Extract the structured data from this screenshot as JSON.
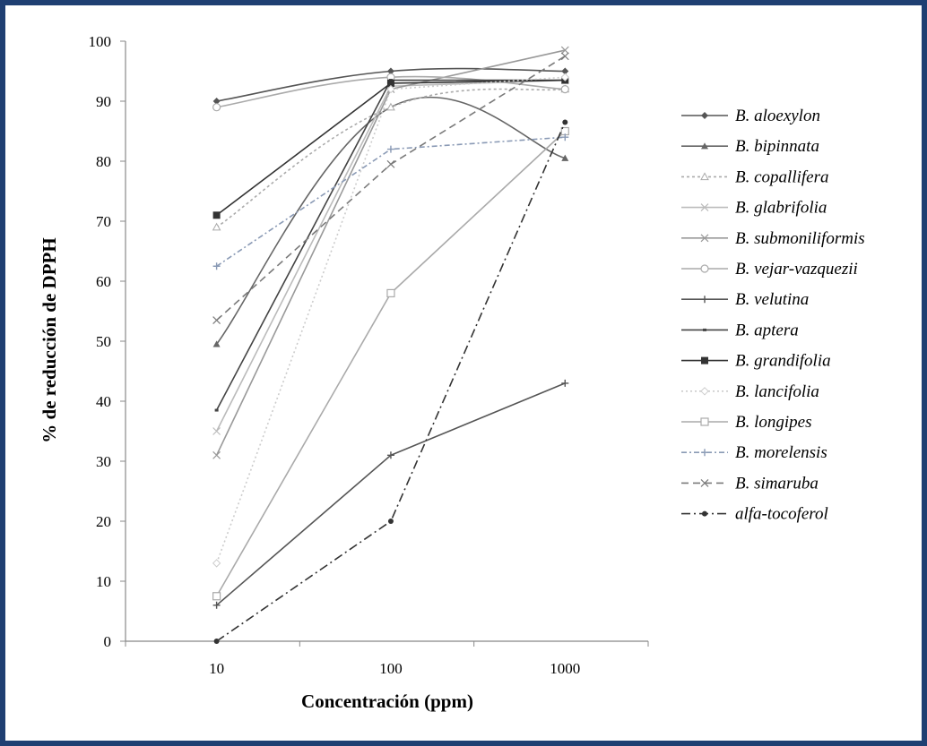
{
  "chart_data": {
    "type": "line",
    "title": "",
    "xlabel": "Concentración (ppm)",
    "ylabel": "% de reducción de DPPH",
    "x": [
      10,
      100,
      1000
    ],
    "x_tick_labels": [
      "10",
      "100",
      "1000"
    ],
    "x_scale": "log",
    "xlim": [
      3,
      3000
    ],
    "ylim": [
      0,
      100
    ],
    "y_ticks": [
      0,
      10,
      20,
      30,
      40,
      50,
      60,
      70,
      80,
      90,
      100
    ],
    "grid": false,
    "legend_position": "right",
    "series": [
      {
        "name": "B. aloexylon",
        "values": [
          90,
          95,
          95
        ],
        "color": "#555555",
        "dash": "",
        "marker": "diamond",
        "smooth": true
      },
      {
        "name": "B. bipinnata",
        "values": [
          49.5,
          89,
          80.5
        ],
        "color": "#666666",
        "dash": "",
        "marker": "triangle",
        "smooth": true
      },
      {
        "name": "B. copallifera",
        "values": [
          69,
          89,
          92
        ],
        "color": "#aaaaaa",
        "dash": "3,3",
        "marker": "triangle-open",
        "smooth": true
      },
      {
        "name": "B. glabrifolia",
        "values": [
          35,
          92.5,
          93.5
        ],
        "color": "#bbbbbb",
        "dash": "",
        "marker": "x",
        "smooth": false
      },
      {
        "name": "B. submoniliformis",
        "values": [
          31,
          92,
          98.5
        ],
        "color": "#999999",
        "dash": "",
        "marker": "x",
        "smooth": false
      },
      {
        "name": "B. vejar-vazquezii",
        "values": [
          89,
          94,
          92
        ],
        "color": "#aaaaaa",
        "dash": "",
        "marker": "circle-open",
        "smooth": true
      },
      {
        "name": "B. velutina",
        "values": [
          6,
          31,
          43
        ],
        "color": "#555555",
        "dash": "",
        "marker": "plus",
        "smooth": false
      },
      {
        "name": "B. aptera",
        "values": [
          38.5,
          93.5,
          93.5
        ],
        "color": "#444444",
        "dash": "",
        "marker": "dash",
        "smooth": false
      },
      {
        "name": "B. grandifolia",
        "values": [
          71,
          93,
          93.5
        ],
        "color": "#333333",
        "dash": "",
        "marker": "square",
        "smooth": false
      },
      {
        "name": "B. lancifolia",
        "values": [
          13,
          92,
          94
        ],
        "color": "#cccccc",
        "dash": "2,3",
        "marker": "diamond-open",
        "smooth": false
      },
      {
        "name": "B. longipes",
        "values": [
          7.5,
          58,
          85
        ],
        "color": "#aaaaaa",
        "dash": "",
        "marker": "square-open",
        "smooth": false
      },
      {
        "name": "B. morelensis",
        "values": [
          62.5,
          82,
          84
        ],
        "color": "#8a9ab5",
        "dash": "6,3,2,3",
        "marker": "plus",
        "smooth": false
      },
      {
        "name": "B. simaruba",
        "values": [
          53.5,
          79.5,
          97.5
        ],
        "color": "#7a7a7a",
        "dash": "8,5",
        "marker": "x",
        "smooth": false
      },
      {
        "name": "alfa-tocoferol",
        "values": [
          0,
          20,
          86.5
        ],
        "color": "#333333",
        "dash": "10,4,2,4",
        "marker": "dot",
        "smooth": false
      }
    ]
  }
}
